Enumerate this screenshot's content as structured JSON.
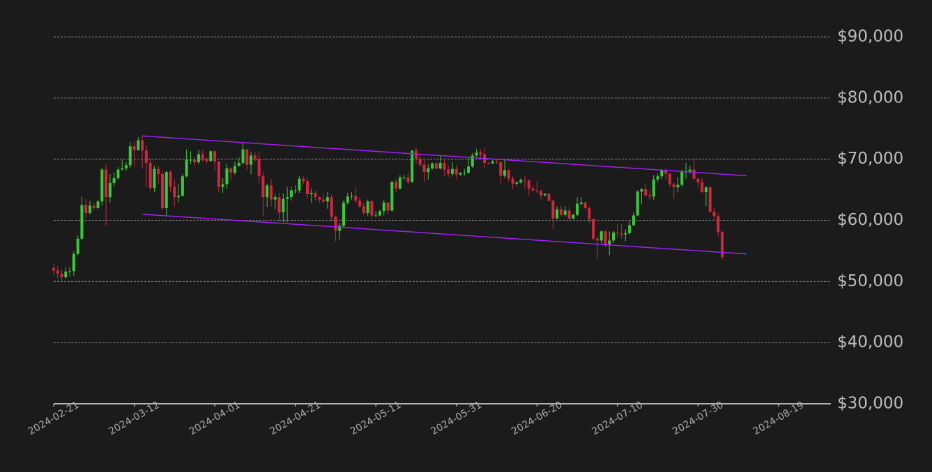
{
  "chart_data": {
    "type": "candlestick",
    "x": [
      "2024-02-21",
      "2024-02-22",
      "2024-02-23",
      "2024-02-24",
      "2024-02-25",
      "2024-02-26",
      "2024-02-27",
      "2024-02-28",
      "2024-02-29",
      "2024-03-01",
      "2024-03-02",
      "2024-03-03",
      "2024-03-04",
      "2024-03-05",
      "2024-03-06",
      "2024-03-07",
      "2024-03-08",
      "2024-03-09",
      "2024-03-10",
      "2024-03-11",
      "2024-03-12",
      "2024-03-13",
      "2024-03-14",
      "2024-03-15",
      "2024-03-16",
      "2024-03-17",
      "2024-03-18",
      "2024-03-19",
      "2024-03-20",
      "2024-03-21",
      "2024-03-22",
      "2024-03-23",
      "2024-03-24",
      "2024-03-25",
      "2024-03-26",
      "2024-03-27",
      "2024-03-28",
      "2024-03-29",
      "2024-03-30",
      "2024-03-31",
      "2024-04-01",
      "2024-04-02",
      "2024-04-03",
      "2024-04-04",
      "2024-04-05",
      "2024-04-06",
      "2024-04-07",
      "2024-04-08",
      "2024-04-09",
      "2024-04-10",
      "2024-04-11",
      "2024-04-12",
      "2024-04-13",
      "2024-04-14",
      "2024-04-15",
      "2024-04-16",
      "2024-04-17",
      "2024-04-18",
      "2024-04-19",
      "2024-04-20",
      "2024-04-21",
      "2024-04-22",
      "2024-04-23",
      "2024-04-24",
      "2024-04-25",
      "2024-04-26",
      "2024-04-27",
      "2024-04-28",
      "2024-04-29",
      "2024-04-30",
      "2024-05-01",
      "2024-05-02",
      "2024-05-03",
      "2024-05-04",
      "2024-05-05",
      "2024-05-06",
      "2024-05-07",
      "2024-05-08",
      "2024-05-09",
      "2024-05-10",
      "2024-05-11",
      "2024-05-12",
      "2024-05-13",
      "2024-05-14",
      "2024-05-15",
      "2024-05-16",
      "2024-05-17",
      "2024-05-18",
      "2024-05-19",
      "2024-05-20",
      "2024-05-21",
      "2024-05-22",
      "2024-05-23",
      "2024-05-24",
      "2024-05-25",
      "2024-05-26",
      "2024-05-27",
      "2024-05-28",
      "2024-05-29",
      "2024-05-30",
      "2024-05-31",
      "2024-06-01",
      "2024-06-02",
      "2024-06-03",
      "2024-06-04",
      "2024-06-05",
      "2024-06-06",
      "2024-06-07",
      "2024-06-08",
      "2024-06-09",
      "2024-06-10",
      "2024-06-11",
      "2024-06-12",
      "2024-06-13",
      "2024-06-14",
      "2024-06-15",
      "2024-06-16",
      "2024-06-17",
      "2024-06-18",
      "2024-06-19",
      "2024-06-20",
      "2024-06-21",
      "2024-06-22",
      "2024-06-23",
      "2024-06-24",
      "2024-06-25",
      "2024-06-26",
      "2024-06-27",
      "2024-06-28",
      "2024-06-29",
      "2024-06-30",
      "2024-07-01",
      "2024-07-02",
      "2024-07-03",
      "2024-07-04",
      "2024-07-05",
      "2024-07-06",
      "2024-07-07",
      "2024-07-08",
      "2024-07-09",
      "2024-07-10",
      "2024-07-11",
      "2024-07-12",
      "2024-07-13",
      "2024-07-14",
      "2024-07-15",
      "2024-07-16",
      "2024-07-17",
      "2024-07-18",
      "2024-07-19",
      "2024-07-20",
      "2024-07-21",
      "2024-07-22",
      "2024-07-23",
      "2024-07-24",
      "2024-07-25",
      "2024-07-26",
      "2024-07-27",
      "2024-07-28",
      "2024-07-29",
      "2024-07-30",
      "2024-07-31",
      "2024-08-01",
      "2024-08-02",
      "2024-08-03",
      "2024-08-04",
      "2024-08-05"
    ],
    "open": [
      52200,
      51800,
      51300,
      50700,
      51600,
      51700,
      54500,
      57000,
      62500,
      61200,
      62400,
      62000,
      63100,
      68300,
      63800,
      66100,
      66900,
      68300,
      68500,
      69000,
      72100,
      71500,
      73100,
      71400,
      69400,
      65300,
      68400,
      67600,
      62000,
      67900,
      65500,
      63800,
      64000,
      67200,
      69900,
      69900,
      69500,
      70800,
      70000,
      69700,
      71300,
      69600,
      65500,
      65900,
      68500,
      67800,
      68900,
      69400,
      71600,
      69100,
      70600,
      70000,
      67200,
      63800,
      65700,
      63400,
      63800,
      61300,
      63500,
      63800,
      64900,
      64900,
      66800,
      66400,
      64300,
      64500,
      63800,
      63400,
      63100,
      63800,
      60600,
      58300,
      59100,
      62900,
      63900,
      64000,
      63200,
      62300,
      61200,
      63100,
      60800,
      60800,
      61500,
      62900,
      61600,
      66300,
      65200,
      67000,
      67000,
      66300,
      71400,
      70100,
      69100,
      67900,
      68500,
      69300,
      68500,
      69400,
      68300,
      67600,
      68400,
      67500,
      67700,
      67800,
      68800,
      70600,
      71100,
      70800,
      69400,
      69300,
      69600,
      69500,
      67300,
      68200,
      66800,
      66000,
      66200,
      66600,
      66500,
      65200,
      64900,
      64800,
      64100,
      64300,
      63200,
      60300,
      61800,
      60900,
      61600,
      60300,
      60900,
      62700,
      62900,
      62000,
      60200,
      57000,
      56700,
      58200,
      55900,
      56700,
      58000,
      57900,
      57700,
      57900,
      59200,
      60800,
      64700,
      65100,
      64100,
      63900,
      66700,
      67200,
      68200,
      67600,
      65900,
      65400,
      65800,
      67900,
      68000,
      68300,
      66800,
      66200,
      64600,
      65400,
      61400,
      60700,
      58100
    ],
    "high": [
      52900,
      52500,
      52000,
      52300,
      52400,
      54900,
      57500,
      63900,
      63500,
      63200,
      62900,
      63400,
      68600,
      69100,
      67600,
      67900,
      68700,
      69900,
      69500,
      72800,
      73000,
      73600,
      73800,
      72300,
      70000,
      68900,
      68900,
      68100,
      68100,
      68200,
      66700,
      65900,
      67600,
      71600,
      71300,
      70300,
      71500,
      71400,
      70300,
      71400,
      71500,
      69700,
      66900,
      69300,
      68700,
      69600,
      70300,
      72700,
      71700,
      71200,
      71200,
      71200,
      67900,
      66000,
      66800,
      64300,
      64500,
      64400,
      65400,
      65500,
      65700,
      67200,
      67200,
      67000,
      65200,
      64800,
      63900,
      64300,
      64700,
      64200,
      60800,
      59600,
      63300,
      64500,
      64600,
      65500,
      63800,
      62900,
      63400,
      63300,
      61500,
      61800,
      63400,
      63000,
      66400,
      66700,
      67400,
      67400,
      67700,
      71500,
      71900,
      70600,
      70000,
      69200,
      69500,
      69500,
      70600,
      69900,
      68900,
      69500,
      69000,
      67900,
      68400,
      70200,
      71000,
      71700,
      71600,
      71900,
      69500,
      69900,
      70100,
      69600,
      69900,
      68400,
      67200,
      66400,
      66900,
      67200,
      66700,
      65700,
      66400,
      65000,
      64500,
      64500,
      63400,
      62300,
      62400,
      62300,
      62200,
      61100,
      63800,
      63800,
      63200,
      62300,
      60300,
      57500,
      58400,
      58400,
      58200,
      58300,
      59400,
      59300,
      58500,
      59900,
      61300,
      64900,
      65300,
      66100,
      65000,
      67400,
      67600,
      68400,
      68500,
      67800,
      66100,
      67100,
      68300,
      69400,
      68900,
      70000,
      67000,
      66900,
      65600,
      65600,
      62000,
      61100,
      58300
    ],
    "low": [
      51000,
      50500,
      50100,
      50400,
      50800,
      50900,
      54300,
      56700,
      60400,
      60900,
      61600,
      61800,
      62400,
      59200,
      62900,
      65600,
      66700,
      68200,
      68100,
      68600,
      68700,
      71400,
      68500,
      65600,
      64900,
      64600,
      66000,
      61700,
      60800,
      64600,
      62300,
      63000,
      63900,
      67000,
      69200,
      68800,
      69200,
      69600,
      69300,
      69600,
      68200,
      64600,
      64500,
      65100,
      66600,
      67500,
      68800,
      69100,
      68200,
      67500,
      69500,
      66000,
      60700,
      62200,
      62300,
      61800,
      59800,
      59700,
      59700,
      63200,
      64300,
      64500,
      65900,
      63600,
      62800,
      63300,
      62800,
      62800,
      61900,
      59900,
      56600,
      56900,
      58800,
      62600,
      63400,
      62800,
      62000,
      60900,
      60700,
      60300,
      60600,
      60700,
      60800,
      61000,
      61400,
      64600,
      65000,
      66600,
      65900,
      66100,
      69200,
      68800,
      66300,
      66600,
      68300,
      68300,
      68300,
      67300,
      67100,
      67200,
      66700,
      67300,
      67300,
      67600,
      68600,
      70400,
      70200,
      68600,
      69100,
      69200,
      69200,
      66100,
      66900,
      66300,
      65100,
      65700,
      66000,
      65200,
      64100,
      64700,
      64500,
      63400,
      63900,
      63100,
      58500,
      60200,
      60600,
      60600,
      60000,
      60200,
      60700,
      62500,
      61800,
      59500,
      56800,
      53800,
      56300,
      55700,
      54300,
      56300,
      57200,
      57000,
      56600,
      57700,
      59100,
      60700,
      62700,
      63900,
      63300,
      63300,
      66300,
      66700,
      66600,
      65500,
      63500,
      64600,
      65500,
      66800,
      67600,
      66600,
      65400,
      64500,
      62300,
      61200,
      60000,
      57300,
      53600
    ],
    "close": [
      51800,
      51300,
      50700,
      51600,
      51700,
      54500,
      57000,
      62500,
      61200,
      62400,
      62000,
      63100,
      68300,
      63800,
      66100,
      66900,
      68300,
      68500,
      69000,
      72100,
      71500,
      73100,
      71400,
      69400,
      65300,
      68400,
      67600,
      62000,
      67900,
      65500,
      63800,
      64000,
      67200,
      69900,
      69900,
      69500,
      70800,
      70000,
      69700,
      71300,
      69600,
      65500,
      65900,
      68500,
      67800,
      68900,
      69400,
      71600,
      69100,
      70600,
      70000,
      67200,
      63800,
      65700,
      63400,
      63800,
      61300,
      63500,
      63800,
      64900,
      64900,
      66800,
      66400,
      64300,
      64500,
      63800,
      63400,
      63100,
      63800,
      60600,
      58300,
      59100,
      62900,
      63900,
      64000,
      63200,
      62300,
      61200,
      63100,
      60800,
      60800,
      61500,
      62900,
      61600,
      66300,
      65200,
      67000,
      67000,
      66300,
      71400,
      70100,
      69100,
      67900,
      68500,
      69300,
      68500,
      69400,
      68300,
      67600,
      68400,
      67500,
      67700,
      67800,
      68800,
      70600,
      71100,
      70800,
      69400,
      69300,
      69600,
      69500,
      67300,
      68200,
      66800,
      66000,
      66200,
      66600,
      66500,
      65200,
      64900,
      64800,
      64100,
      64300,
      63200,
      60300,
      61800,
      60900,
      61600,
      60300,
      60900,
      62700,
      62900,
      62000,
      60200,
      57000,
      56700,
      58200,
      55900,
      56700,
      58000,
      57900,
      57700,
      57900,
      59200,
      60800,
      64700,
      65100,
      64100,
      63900,
      66700,
      67200,
      68200,
      67600,
      65900,
      65400,
      65800,
      67900,
      68000,
      68300,
      66800,
      66200,
      64600,
      65400,
      61400,
      60700,
      58100,
      54000
    ],
    "up_color": "#3cc83c",
    "down_color": "#d0283c",
    "xlim": [
      "2024-02-21",
      "2024-09-01"
    ],
    "xticks": [
      "2024-02-21",
      "2024-03-12",
      "2024-04-01",
      "2024-04-21",
      "2024-05-11",
      "2024-05-31",
      "2024-06-20",
      "2024-07-10",
      "2024-07-30",
      "2024-08-19"
    ],
    "ylim": [
      30000,
      90000
    ],
    "yticks": [
      {
        "value": 30000,
        "label": "$30,000"
      },
      {
        "value": 40000,
        "label": "$40,000"
      },
      {
        "value": 50000,
        "label": "$50,000"
      },
      {
        "value": 60000,
        "label": "$60,000"
      },
      {
        "value": 70000,
        "label": "$70,000"
      },
      {
        "value": 80000,
        "label": "$80,000"
      },
      {
        "value": 90000,
        "label": "$90,000"
      }
    ],
    "grid": true,
    "trendlines": [
      {
        "color": "#a020f0",
        "x": [
          "2024-03-14",
          "2024-08-11"
        ],
        "y": [
          73800,
          67300
        ]
      },
      {
        "color": "#a020f0",
        "x": [
          "2024-03-14",
          "2024-08-11"
        ],
        "y": [
          61000,
          54500
        ]
      }
    ]
  }
}
